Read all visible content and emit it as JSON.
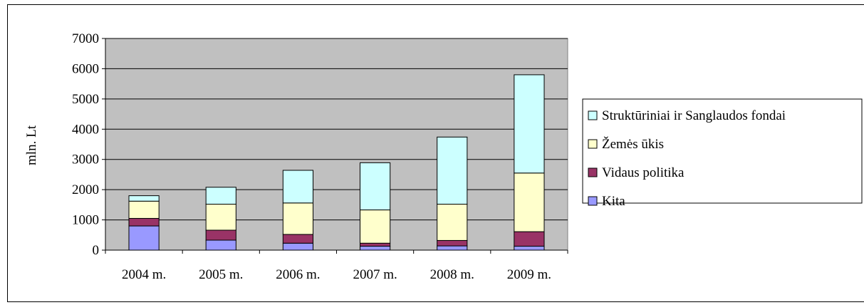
{
  "chart_data": {
    "type": "bar",
    "stacked": true,
    "categories": [
      "2004 m.",
      "2005 m.",
      "2006 m.",
      "2007 m.",
      "2008 m.",
      "2009 m."
    ],
    "series": [
      {
        "name": "Kita",
        "color": "#9999ff",
        "values": [
          800,
          330,
          230,
          130,
          140,
          130
        ]
      },
      {
        "name": "Vidaus politika",
        "color": "#993366",
        "values": [
          250,
          330,
          290,
          100,
          180,
          480
        ]
      },
      {
        "name": "Žemės ūkis",
        "color": "#ffffcc",
        "values": [
          570,
          860,
          1040,
          1100,
          1200,
          1940
        ]
      },
      {
        "name": "Struktūriniai ir Sanglaudos fondai",
        "color": "#ccffff",
        "values": [
          180,
          560,
          1080,
          1560,
          2220,
          3250
        ]
      }
    ],
    "title": "",
    "xlabel": "",
    "ylabel": "mln. Lt",
    "ylim": [
      0,
      7000
    ],
    "yticks": [
      "0",
      "1000",
      "2000",
      "3000",
      "4000",
      "5000",
      "6000",
      "7000"
    ],
    "plot_area_color": "#c0c0c0",
    "grid": true,
    "legend": "right"
  }
}
